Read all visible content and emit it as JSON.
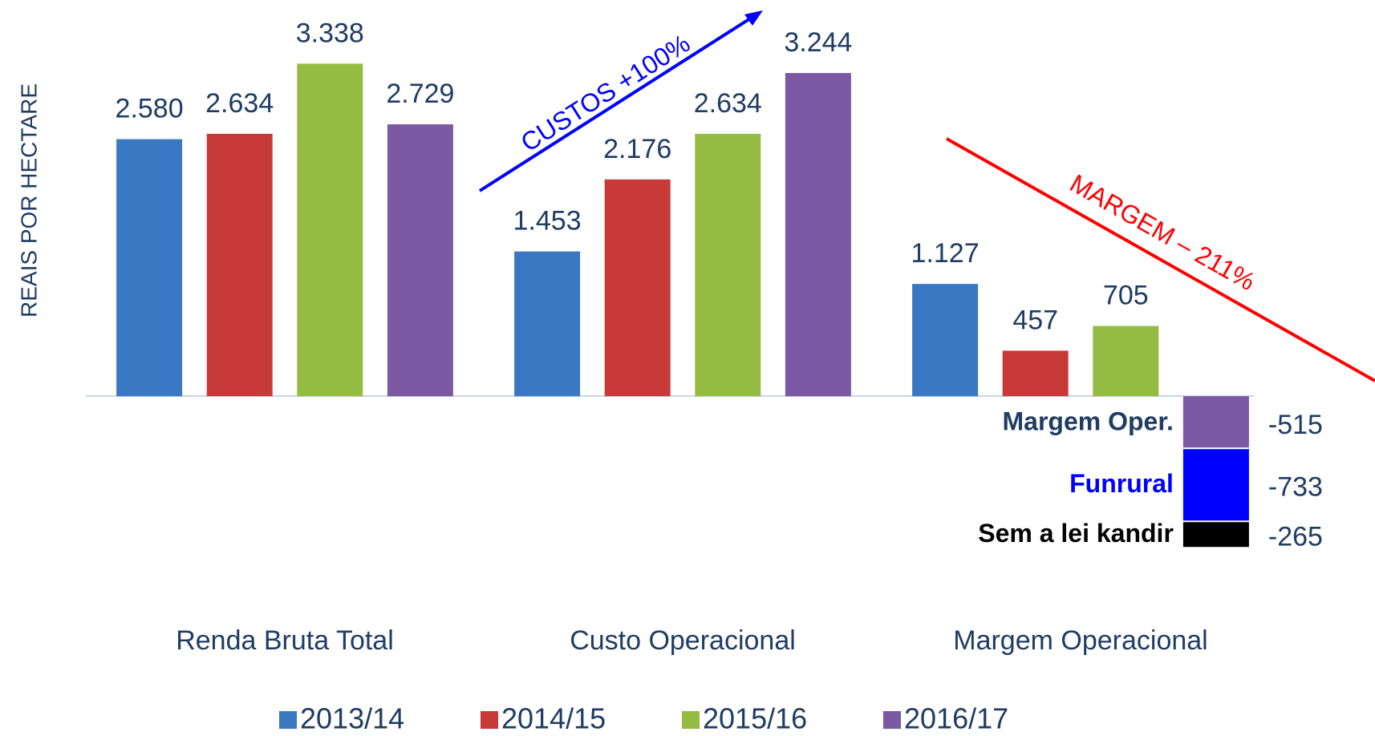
{
  "chart_data": {
    "type": "bar",
    "y_label": "REAIS POR HECTARE",
    "categories": [
      "Renda Bruta Total",
      "Custo Operacional",
      "Margem Operacional"
    ],
    "series": [
      {
        "name": "2013/14",
        "color": "#3a78c4",
        "values": [
          2580,
          1453,
          1127
        ],
        "value_labels": [
          "2.580",
          "1.453",
          "1.127"
        ]
      },
      {
        "name": "2014/15",
        "color": "#c83a38",
        "values": [
          2634,
          2176,
          457
        ],
        "value_labels": [
          "2.634",
          "2.176",
          "457"
        ]
      },
      {
        "name": "2015/16",
        "color": "#94bc42",
        "values": [
          3338,
          2634,
          705
        ],
        "value_labels": [
          "3.338",
          "2.634",
          "705"
        ]
      },
      {
        "name": "2016/17",
        "color": "#7a58a4",
        "values": [
          2729,
          3244,
          -515
        ],
        "value_labels": [
          "2.729",
          "3.244",
          "-515"
        ]
      }
    ],
    "stack": {
      "base_label": "Margem Oper.",
      "base_label_color": "#1f3c63",
      "segments": [
        {
          "name": "Funrural",
          "value": -733,
          "value_label": "-733",
          "color": "#0000ff",
          "label_color": "#0000ff"
        },
        {
          "name": "Sem a lei kandir",
          "value": -265,
          "value_label": "-265",
          "color": "#000000",
          "label_color": "#000000"
        }
      ]
    },
    "annotations": [
      {
        "text": "CUSTOS +100%",
        "color": "#0000ff"
      },
      {
        "text": "MARGEM – 211%",
        "color": "#ff0000"
      }
    ],
    "ylim": [
      -1600,
      3800
    ],
    "legend": "bottom"
  }
}
